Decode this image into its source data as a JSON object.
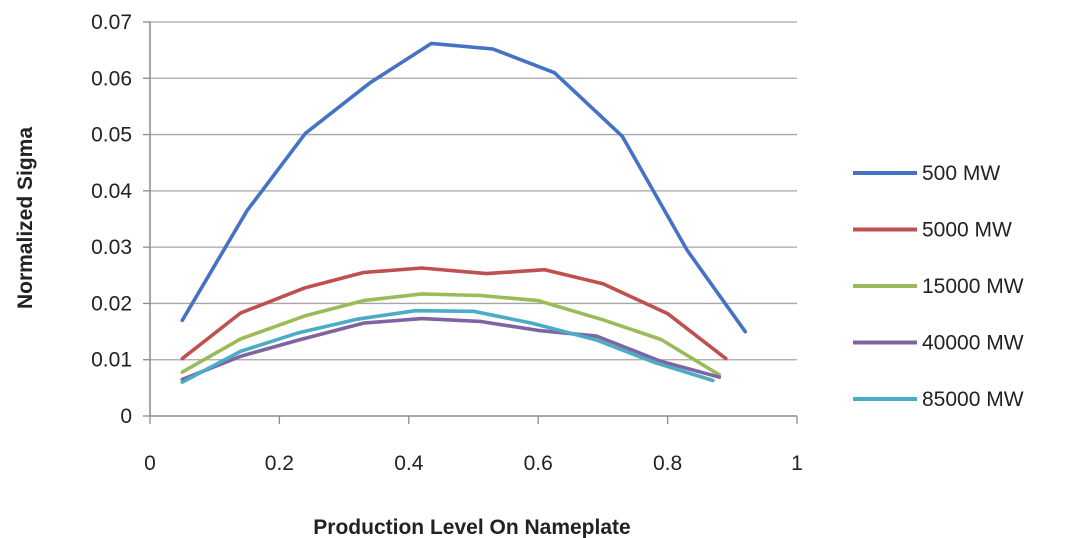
{
  "chart_data": {
    "type": "line",
    "xlabel": "Production Level On Nameplate",
    "ylabel": "Normalized Sigma",
    "xlim": [
      0,
      1
    ],
    "ylim": [
      0,
      0.07
    ],
    "xticks": [
      "0",
      "0.2",
      "0.4",
      "0.6",
      "0.8",
      "1"
    ],
    "xtick_values": [
      0,
      0.2,
      0.4,
      0.6,
      0.8,
      1
    ],
    "yticks": [
      "0",
      "0.01",
      "0.02",
      "0.03",
      "0.04",
      "0.05",
      "0.06",
      "0.07"
    ],
    "ytick_values": [
      0,
      0.01,
      0.02,
      0.03,
      0.04,
      0.05,
      0.06,
      0.07
    ],
    "grid": "horizontal",
    "legend_position": "right",
    "series": [
      {
        "name": "500 MW",
        "color": "#4472C4",
        "x": [
          0.05,
          0.15,
          0.24,
          0.34,
          0.435,
          0.53,
          0.625,
          0.73,
          0.83,
          0.92
        ],
        "y": [
          0.017,
          0.0365,
          0.0502,
          0.0592,
          0.0662,
          0.0652,
          0.061,
          0.0497,
          0.0295,
          0.015
        ]
      },
      {
        "name": "5000 MW",
        "color": "#C0504D",
        "x": [
          0.05,
          0.14,
          0.24,
          0.33,
          0.42,
          0.52,
          0.61,
          0.7,
          0.8,
          0.89
        ],
        "y": [
          0.0102,
          0.0183,
          0.0228,
          0.0255,
          0.0263,
          0.0253,
          0.026,
          0.0235,
          0.0182,
          0.0102
        ]
      },
      {
        "name": "15000 MW",
        "color": "#9BBB59",
        "x": [
          0.05,
          0.14,
          0.24,
          0.33,
          0.42,
          0.51,
          0.6,
          0.7,
          0.79,
          0.88
        ],
        "y": [
          0.0078,
          0.0137,
          0.0178,
          0.0205,
          0.0217,
          0.0214,
          0.0205,
          0.0171,
          0.0136,
          0.0073
        ]
      },
      {
        "name": "40000 MW",
        "color": "#8064A2",
        "x": [
          0.05,
          0.14,
          0.23,
          0.33,
          0.42,
          0.51,
          0.6,
          0.69,
          0.79,
          0.88
        ],
        "y": [
          0.0065,
          0.0106,
          0.0135,
          0.0165,
          0.0173,
          0.0168,
          0.0152,
          0.0142,
          0.0097,
          0.0069
        ]
      },
      {
        "name": "85000 MW",
        "color": "#4BACC6",
        "x": [
          0.05,
          0.14,
          0.23,
          0.32,
          0.41,
          0.5,
          0.59,
          0.69,
          0.78,
          0.87
        ],
        "y": [
          0.006,
          0.0115,
          0.0148,
          0.0172,
          0.0187,
          0.0186,
          0.0165,
          0.0135,
          0.0095,
          0.0063
        ]
      }
    ]
  }
}
